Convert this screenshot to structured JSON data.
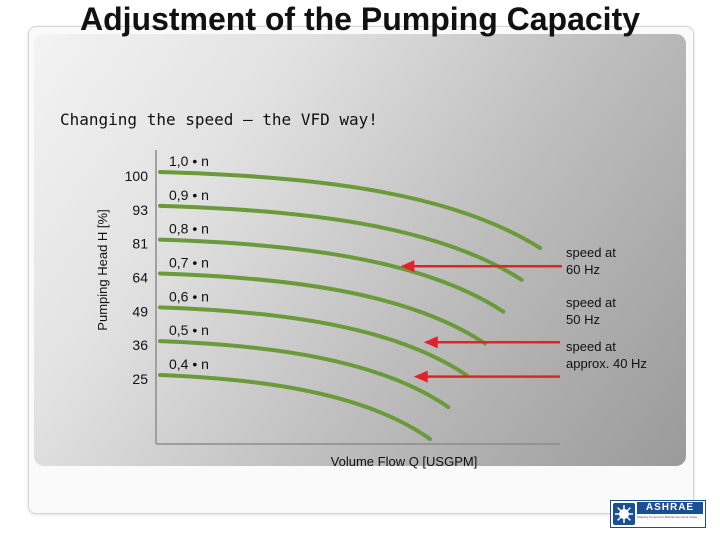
{
  "slide": {
    "title": "Adjustment of the Pumping Capacity",
    "subtitle": "Changing the speed – the VFD way!"
  },
  "chart_data": {
    "type": "line",
    "title": "",
    "xlabel": "Volume Flow Q [USGPM]",
    "ylabel": "Pumping Head H [%]",
    "series": [
      {
        "name": "1,0 • n",
        "head": 100
      },
      {
        "name": "0,9 • n",
        "head": 93
      },
      {
        "name": "0,8 • n",
        "head": 81
      },
      {
        "name": "0,7 • n",
        "head": 64
      },
      {
        "name": "0,6 • n",
        "head": 49
      },
      {
        "name": "0,5 • n",
        "head": 36
      },
      {
        "name": "0,4 • n",
        "head": 25
      }
    ],
    "annotations": [
      {
        "text": "speed at 60 Hz",
        "points_to": "0,8 • n"
      },
      {
        "text": "speed at 50 Hz",
        "points_to": "0,6 • n"
      },
      {
        "text": "speed at approx. 40 Hz",
        "points_to": "0,5 • n"
      }
    ],
    "colors": {
      "curve": "#6a9a3a",
      "arrow": "#e0232a",
      "axis": "#8c8c8c"
    }
  },
  "logo": {
    "name": "ASHRAE",
    "tagline": "Shaping Tomorrow's Built Environment Today"
  }
}
